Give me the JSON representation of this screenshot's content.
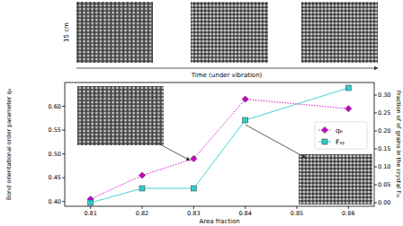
{
  "figure": {
    "scale_label": "15 cm",
    "time_label": "Time (under vibration)"
  },
  "chart_data": {
    "type": "line",
    "x_label": "Area fraction",
    "y_label": "Bond orientational order parameter  q₆",
    "y2_label": "Fraction of of grains in the crystal F₃₁",
    "x": [
      0.81,
      0.82,
      0.83,
      0.84,
      0.86
    ],
    "xlim": [
      0.805,
      0.865
    ],
    "xticks": [
      0.81,
      0.82,
      0.83,
      0.84,
      0.85,
      0.86
    ],
    "ylim": [
      0.39,
      0.65
    ],
    "yticks": [
      {
        "value": 0.4,
        "label": "0.40"
      },
      {
        "value": 0.45,
        "label": "0.45"
      },
      {
        "value": 0.5,
        "label": "0.50"
      },
      {
        "value": 0.55,
        "label": "0.55"
      },
      {
        "value": 0.6,
        "label": "0.60"
      }
    ],
    "y2lim": [
      -0.01,
      0.335
    ],
    "y2ticks": [
      {
        "value": 0,
        "label": "0.00"
      },
      {
        "value": 0.05,
        "label": "0.05"
      },
      {
        "value": 0.1,
        "label": "0.10"
      },
      {
        "value": 0.15,
        "label": "0.15"
      },
      {
        "value": 0.2,
        "label": "0.20"
      },
      {
        "value": 0.25,
        "label": "0.25"
      },
      {
        "value": 0.3,
        "label": "0.30"
      }
    ],
    "grid": false,
    "legend": "right",
    "series": [
      {
        "name": "q₆",
        "color": "#cc00cc",
        "marker": "diamond",
        "line_style": "dotted",
        "values": [
          0.405,
          0.455,
          0.49,
          0.615,
          0.595
        ]
      },
      {
        "name": "F₃₁",
        "color": "#33cccc",
        "marker": "square",
        "line_style": "solid",
        "axis": "y2",
        "values": [
          0.0,
          0.04,
          0.04,
          0.23,
          0.32
        ]
      }
    ]
  }
}
